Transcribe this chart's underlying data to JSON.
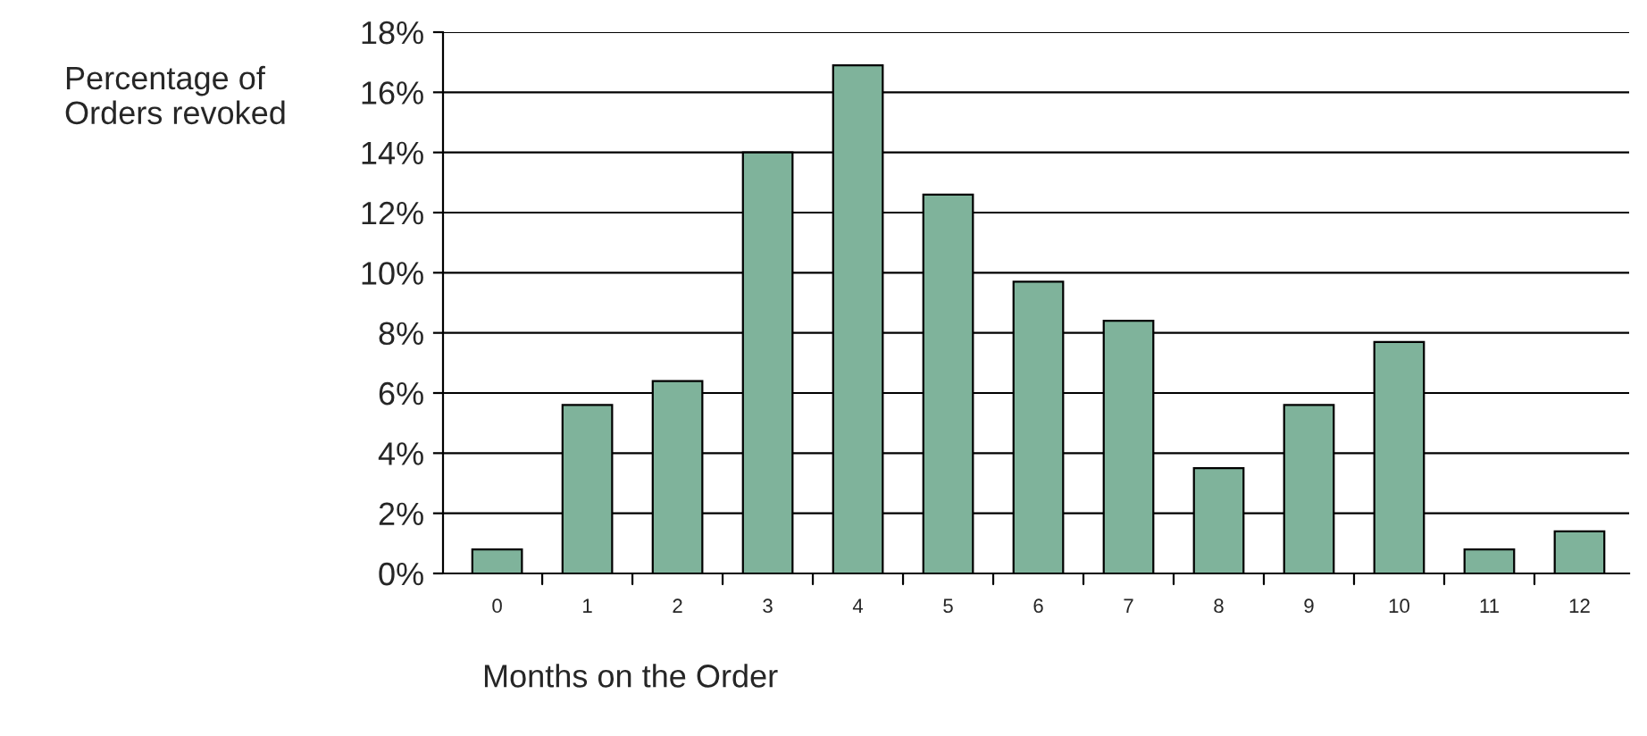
{
  "chart_data": {
    "type": "bar",
    "ylabel": "Percentage of\nOrders revoked",
    "xlabel": "Months on the Order",
    "categories": [
      "0",
      "1",
      "2",
      "3",
      "4",
      "5",
      "6",
      "7",
      "8",
      "9",
      "10",
      "11",
      "12"
    ],
    "values": [
      0.8,
      5.6,
      6.4,
      14.0,
      16.9,
      12.6,
      9.7,
      8.4,
      3.5,
      5.6,
      7.7,
      0.8,
      1.4
    ],
    "color": "#7fb39b",
    "ylim": [
      0,
      18
    ],
    "yticks": [
      {
        "value": 0,
        "label": "0%"
      },
      {
        "value": 2,
        "label": "2%"
      },
      {
        "value": 4,
        "label": "4%"
      },
      {
        "value": 6,
        "label": "6%"
      },
      {
        "value": 8,
        "label": "8%"
      },
      {
        "value": 10,
        "label": "10%"
      },
      {
        "value": 12,
        "label": "12%"
      },
      {
        "value": 14,
        "label": "14%"
      },
      {
        "value": 16,
        "label": "16%"
      },
      {
        "value": 18,
        "label": "18%"
      }
    ],
    "grid": "y",
    "legend": false
  }
}
